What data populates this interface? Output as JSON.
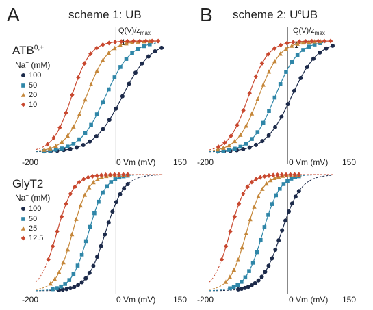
{
  "panel_letters": [
    "A",
    "B"
  ],
  "scheme_titles": [
    "scheme 1:  UB",
    "scheme 2:  U",
    "c",
    "UB"
  ],
  "row_labels": {
    "atb_main": "ATB",
    "atb_sup": "0,+",
    "glyt2": "GlyT2"
  },
  "legend_title": {
    "pre": "Na",
    "sup": "+",
    "post": " (mM)"
  },
  "legends": {
    "atb": [
      "100",
      "50",
      "20",
      "10"
    ],
    "glyt2": [
      "100",
      "50",
      "25",
      "12.5"
    ]
  },
  "colors": {
    "c100": "#1c2a4a",
    "c50": "#2f86a8",
    "c20": "#c5873a",
    "c10": "#c8472e"
  },
  "marker_shapes": [
    "circle",
    "square",
    "triangle",
    "diamond"
  ],
  "axis_text": {
    "ylabel_pre": "Q(V)/z",
    "ylabel_sub": "max",
    "ytick": "1",
    "xtick_min": "-200",
    "xtick_max": "150",
    "xlabel": "Vm (mV)",
    "xtick_zero": "0"
  },
  "chart_data": [
    {
      "type": "scatter",
      "id": "atb-ub",
      "xlim": [
        -200,
        150
      ],
      "ylim": [
        0,
        1
      ],
      "series": [
        {
          "name": "100",
          "V0": 15,
          "k": 34,
          "xmin": -190,
          "xmax": 105,
          "pts_range": [
            -170,
            108
          ]
        },
        {
          "name": "50",
          "V0": -25,
          "k": 30,
          "xmin": -190,
          "xmax": 105,
          "pts_range": [
            -170,
            80
          ]
        },
        {
          "name": "20",
          "V0": -70,
          "k": 25,
          "xmin": -190,
          "xmax": 105,
          "pts_range": [
            -170,
            80
          ]
        },
        {
          "name": "10",
          "V0": -105,
          "k": 22,
          "xmin": -190,
          "xmax": 105,
          "pts_range": [
            -162,
            100
          ]
        }
      ]
    },
    {
      "type": "scatter",
      "id": "atb-ucub",
      "xlim": [
        -200,
        150
      ],
      "ylim": [
        0,
        1
      ],
      "series": [
        {
          "name": "100",
          "V0": 10,
          "k": 32,
          "xmin": -190,
          "xmax": 110,
          "pts_range": [
            -170,
            110
          ]
        },
        {
          "name": "50",
          "V0": -30,
          "k": 28,
          "xmin": -190,
          "xmax": 110,
          "pts_range": [
            -170,
            80
          ]
        },
        {
          "name": "20",
          "V0": -70,
          "k": 26,
          "xmin": -190,
          "xmax": 110,
          "pts_range": [
            -170,
            80
          ]
        },
        {
          "name": "10",
          "V0": -95,
          "k": 24,
          "xmin": -190,
          "xmax": 110,
          "pts_range": [
            -168,
            105
          ]
        }
      ]
    },
    {
      "type": "scatter",
      "id": "glyt2-ub",
      "xlim": [
        -200,
        150
      ],
      "ylim": [
        0,
        1
      ],
      "series": [
        {
          "name": "100",
          "V0": -25,
          "k": 22,
          "xmin": -190,
          "xmax": 110,
          "pts_range": [
            -135,
            28
          ]
        },
        {
          "name": "50",
          "V0": -65,
          "k": 20,
          "xmin": -190,
          "xmax": 110,
          "pts_range": [
            -150,
            28
          ]
        },
        {
          "name": "25",
          "V0": -103,
          "k": 19,
          "xmin": -190,
          "xmax": 110,
          "pts_range": [
            -155,
            28
          ]
        },
        {
          "name": "12.5",
          "V0": -140,
          "k": 20,
          "xmin": -190,
          "xmax": 110,
          "pts_range": [
            -160,
            28
          ]
        }
      ]
    },
    {
      "type": "scatter",
      "id": "glyt2-ucub",
      "xlim": [
        -200,
        150
      ],
      "ylim": [
        0,
        1
      ],
      "series": [
        {
          "name": "100",
          "V0": -15,
          "k": 24,
          "xmin": -190,
          "xmax": 110,
          "pts_range": [
            -120,
            28
          ]
        },
        {
          "name": "50",
          "V0": -60,
          "k": 21,
          "xmin": -190,
          "xmax": 110,
          "pts_range": [
            -140,
            28
          ]
        },
        {
          "name": "25",
          "V0": -100,
          "k": 20,
          "xmin": -190,
          "xmax": 110,
          "pts_range": [
            -150,
            28
          ]
        },
        {
          "name": "12.5",
          "V0": -140,
          "k": 20,
          "xmin": -190,
          "xmax": 110,
          "pts_range": [
            -160,
            28
          ]
        }
      ]
    }
  ]
}
